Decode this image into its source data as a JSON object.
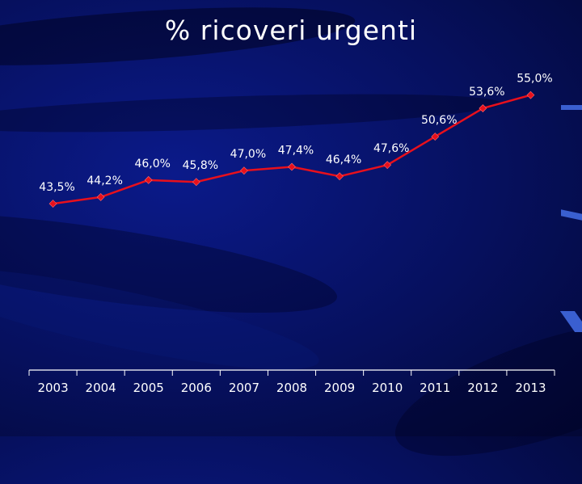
{
  "chart_data": {
    "type": "line",
    "title": "% ricoveri urgenti",
    "xlabel": "",
    "ylabel": "",
    "categories": [
      "2003",
      "2004",
      "2005",
      "2006",
      "2007",
      "2008",
      "2009",
      "2010",
      "2011",
      "2012",
      "2013"
    ],
    "series": [
      {
        "values": [
          43.5,
          44.2,
          46.0,
          45.8,
          47.0,
          47.4,
          46.4,
          47.6,
          50.6,
          53.6,
          55.0
        ],
        "data_labels": [
          "43,5%",
          "44,2%",
          "46,0%",
          "45,8%",
          "47,0%",
          "47,4%",
          "46,4%",
          "47,6%",
          "50,6%",
          "53,6%",
          "55,0%"
        ]
      }
    ],
    "grid": false,
    "legend": "none",
    "y_axis_visible": false,
    "colors": {
      "line": "#e8101c",
      "marker": "#e8101c",
      "text": "#ffffff",
      "axis": "#ffffff"
    }
  }
}
